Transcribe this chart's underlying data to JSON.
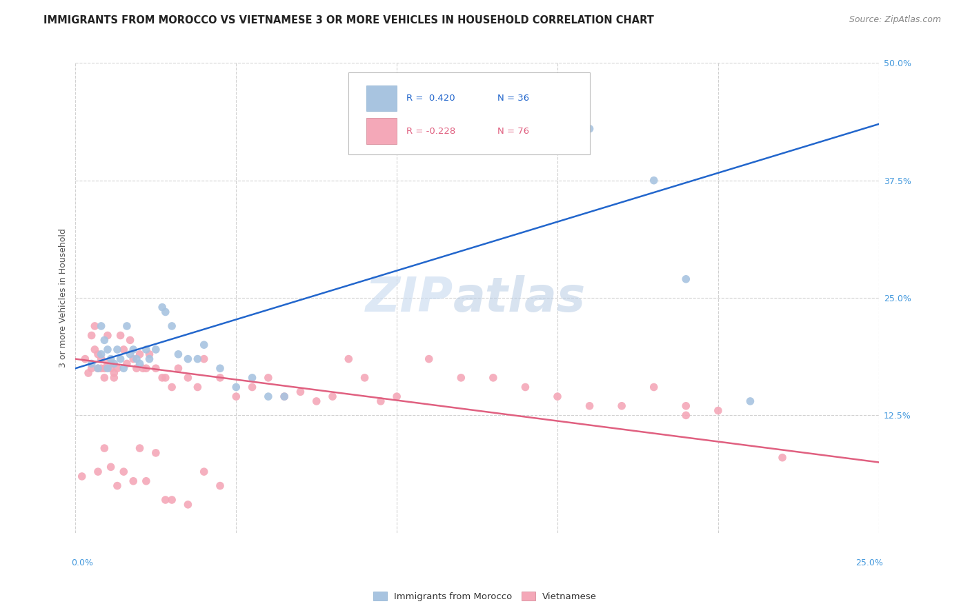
{
  "title": "IMMIGRANTS FROM MOROCCO VS VIETNAMESE 3 OR MORE VEHICLES IN HOUSEHOLD CORRELATION CHART",
  "source": "Source: ZipAtlas.com",
  "ylabel": "3 or more Vehicles in Household",
  "morocco_color": "#a8c4e0",
  "vietnamese_color": "#f4a8b8",
  "morocco_line_color": "#2266cc",
  "vietnamese_line_color": "#e06080",
  "background_color": "#ffffff",
  "grid_color": "#cccccc",
  "watermark_zip": "ZIP",
  "watermark_atlas": "atlas",
  "xlim": [
    0.0,
    0.25
  ],
  "ylim": [
    0.0,
    0.5
  ],
  "right_ytick_vals": [
    0.125,
    0.25,
    0.375,
    0.5
  ],
  "right_ytick_labels": [
    "12.5%",
    "25.0%",
    "37.5%",
    "50.0%"
  ],
  "morocco_line_x0": 0.0,
  "morocco_line_y0": 0.175,
  "morocco_line_x1": 0.25,
  "morocco_line_y1": 0.435,
  "vietnamese_line_x0": 0.0,
  "vietnamese_line_y0": 0.185,
  "vietnamese_line_x1": 0.25,
  "vietnamese_line_y1": 0.075,
  "morocco_scatter_x": [
    0.005,
    0.007,
    0.008,
    0.008,
    0.009,
    0.01,
    0.01,
    0.011,
    0.012,
    0.013,
    0.014,
    0.015,
    0.016,
    0.017,
    0.018,
    0.019,
    0.02,
    0.022,
    0.023,
    0.025,
    0.027,
    0.028,
    0.03,
    0.032,
    0.035,
    0.038,
    0.04,
    0.045,
    0.05,
    0.055,
    0.06,
    0.065,
    0.16,
    0.18,
    0.19,
    0.21
  ],
  "morocco_scatter_y": [
    0.18,
    0.175,
    0.19,
    0.22,
    0.205,
    0.195,
    0.175,
    0.185,
    0.18,
    0.195,
    0.185,
    0.175,
    0.22,
    0.19,
    0.195,
    0.185,
    0.18,
    0.195,
    0.185,
    0.195,
    0.24,
    0.235,
    0.22,
    0.19,
    0.185,
    0.185,
    0.2,
    0.175,
    0.155,
    0.165,
    0.145,
    0.145,
    0.43,
    0.375,
    0.27,
    0.14
  ],
  "vietnamese_scatter_x": [
    0.002,
    0.003,
    0.004,
    0.005,
    0.005,
    0.006,
    0.006,
    0.007,
    0.007,
    0.008,
    0.008,
    0.009,
    0.009,
    0.01,
    0.01,
    0.011,
    0.011,
    0.012,
    0.012,
    0.013,
    0.014,
    0.015,
    0.016,
    0.017,
    0.018,
    0.019,
    0.02,
    0.021,
    0.022,
    0.023,
    0.025,
    0.027,
    0.028,
    0.03,
    0.032,
    0.035,
    0.038,
    0.04,
    0.045,
    0.05,
    0.055,
    0.06,
    0.065,
    0.07,
    0.075,
    0.08,
    0.085,
    0.09,
    0.095,
    0.1,
    0.11,
    0.12,
    0.13,
    0.14,
    0.15,
    0.16,
    0.17,
    0.18,
    0.19,
    0.2,
    0.007,
    0.009,
    0.011,
    0.013,
    0.015,
    0.018,
    0.02,
    0.022,
    0.025,
    0.028,
    0.03,
    0.035,
    0.04,
    0.045,
    0.19,
    0.22
  ],
  "vietnamese_scatter_y": [
    0.06,
    0.185,
    0.17,
    0.175,
    0.21,
    0.22,
    0.195,
    0.19,
    0.175,
    0.185,
    0.175,
    0.175,
    0.165,
    0.21,
    0.18,
    0.18,
    0.175,
    0.17,
    0.165,
    0.175,
    0.21,
    0.195,
    0.18,
    0.205,
    0.185,
    0.175,
    0.19,
    0.175,
    0.175,
    0.19,
    0.175,
    0.165,
    0.165,
    0.155,
    0.175,
    0.165,
    0.155,
    0.185,
    0.165,
    0.145,
    0.155,
    0.165,
    0.145,
    0.15,
    0.14,
    0.145,
    0.185,
    0.165,
    0.14,
    0.145,
    0.185,
    0.165,
    0.165,
    0.155,
    0.145,
    0.135,
    0.135,
    0.155,
    0.135,
    0.13,
    0.065,
    0.09,
    0.07,
    0.05,
    0.065,
    0.055,
    0.09,
    0.055,
    0.085,
    0.035,
    0.035,
    0.03,
    0.065,
    0.05,
    0.125,
    0.08
  ]
}
